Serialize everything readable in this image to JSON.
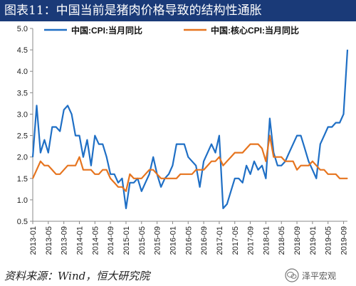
{
  "header": {
    "title": "图表11：中国当前是猪肉价格导致的结构性通胀"
  },
  "footer": {
    "source": "资料来源：Wind，恒大研究院"
  },
  "watermark": {
    "text": "泽平宏观"
  },
  "colors": {
    "cpi": "#1f6fc5",
    "core": "#e6741e",
    "title_bg": "#1a3a78"
  },
  "chart_data": {
    "type": "line",
    "ylim": [
      0.5,
      5.0
    ],
    "yticks": [
      "5.0",
      "4.5",
      "4.0",
      "3.5",
      "3.0",
      "2.5",
      "2.0",
      "1.5",
      "1.0",
      "0.5"
    ],
    "xtick_labels": [
      "2013-01",
      "2013-05",
      "2013-09",
      "2014-01",
      "2014-05",
      "2014-09",
      "2015-01",
      "2015-05",
      "2015-09",
      "2016-01",
      "2016-05",
      "2016-09",
      "2017-01",
      "2017-05",
      "2017-09",
      "2018-01",
      "2018-05",
      "2018-09",
      "2019-01",
      "2019-05",
      "2019-09"
    ],
    "x": [
      "2013-01",
      "2013-02",
      "2013-03",
      "2013-04",
      "2013-05",
      "2013-06",
      "2013-07",
      "2013-08",
      "2013-09",
      "2013-10",
      "2013-11",
      "2013-12",
      "2014-01",
      "2014-02",
      "2014-03",
      "2014-04",
      "2014-05",
      "2014-06",
      "2014-07",
      "2014-08",
      "2014-09",
      "2014-10",
      "2014-11",
      "2014-12",
      "2015-01",
      "2015-02",
      "2015-03",
      "2015-04",
      "2015-05",
      "2015-06",
      "2015-07",
      "2015-08",
      "2015-09",
      "2015-10",
      "2015-11",
      "2015-12",
      "2016-01",
      "2016-02",
      "2016-03",
      "2016-04",
      "2016-05",
      "2016-06",
      "2016-07",
      "2016-08",
      "2016-09",
      "2016-10",
      "2016-11",
      "2016-12",
      "2017-01",
      "2017-02",
      "2017-03",
      "2017-04",
      "2017-05",
      "2017-06",
      "2017-07",
      "2017-08",
      "2017-09",
      "2017-10",
      "2017-11",
      "2017-12",
      "2018-01",
      "2018-02",
      "2018-03",
      "2018-04",
      "2018-05",
      "2018-06",
      "2018-07",
      "2018-08",
      "2018-09",
      "2018-10",
      "2018-11",
      "2018-12",
      "2019-01",
      "2019-02",
      "2019-03",
      "2019-04",
      "2019-05",
      "2019-06",
      "2019-07",
      "2019-08",
      "2019-09",
      "2019-10"
    ],
    "series": [
      {
        "name": "中国:CPI:当月同比",
        "color": "#1f6fc5",
        "values": [
          2.0,
          3.2,
          2.1,
          2.4,
          2.1,
          2.7,
          2.7,
          2.6,
          3.1,
          3.2,
          3.0,
          2.5,
          2.5,
          2.0,
          2.4,
          1.8,
          2.5,
          2.3,
          2.3,
          2.0,
          1.6,
          1.6,
          1.4,
          1.5,
          0.8,
          1.4,
          1.4,
          1.5,
          1.2,
          1.4,
          1.6,
          2.0,
          1.6,
          1.3,
          1.5,
          1.6,
          1.8,
          2.3,
          2.3,
          2.3,
          2.0,
          1.9,
          1.8,
          1.3,
          1.9,
          2.1,
          2.3,
          2.1,
          2.5,
          0.8,
          0.9,
          1.2,
          1.5,
          1.5,
          1.4,
          1.8,
          1.6,
          1.9,
          1.7,
          1.8,
          1.5,
          2.9,
          2.1,
          1.8,
          1.8,
          1.9,
          2.1,
          2.3,
          2.5,
          2.5,
          2.2,
          1.9,
          1.7,
          1.5,
          2.3,
          2.5,
          2.7,
          2.7,
          2.8,
          2.8,
          3.0,
          4.5
        ]
      },
      {
        "name": "中国:核心CPI:当月同比",
        "color": "#e6741e",
        "values": [
          1.5,
          1.7,
          1.9,
          1.8,
          1.8,
          1.7,
          1.6,
          1.6,
          1.7,
          1.8,
          1.8,
          1.8,
          2.0,
          1.7,
          1.7,
          1.7,
          1.6,
          1.6,
          1.7,
          1.7,
          1.5,
          1.4,
          1.3,
          1.3,
          1.2,
          1.6,
          1.5,
          1.5,
          1.5,
          1.6,
          1.7,
          1.7,
          1.6,
          1.5,
          1.5,
          1.5,
          1.5,
          1.5,
          1.6,
          1.6,
          1.6,
          1.6,
          1.7,
          1.7,
          1.7,
          1.8,
          1.9,
          1.9,
          2.0,
          1.8,
          1.9,
          2.0,
          2.1,
          2.1,
          2.1,
          2.2,
          2.3,
          2.3,
          2.3,
          2.2,
          1.9,
          2.5,
          2.0,
          2.0,
          2.0,
          1.9,
          1.9,
          1.9,
          1.7,
          1.8,
          1.8,
          1.8,
          1.9,
          1.8,
          1.7,
          1.7,
          1.6,
          1.6,
          1.6,
          1.5,
          1.5,
          1.5
        ]
      }
    ],
    "legend_position": "top",
    "grid": false
  }
}
